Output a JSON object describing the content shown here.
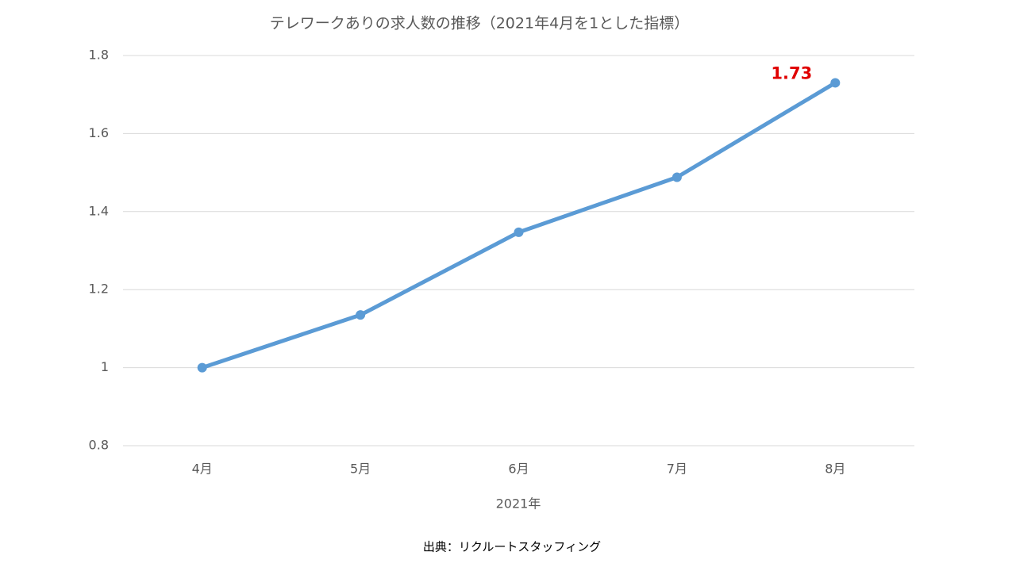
{
  "chart_data": {
    "type": "line",
    "title": "テレワークありの求人数の推移（2021年4月を1とした指標）",
    "categories": [
      "4月",
      "5月",
      "6月",
      "7月",
      "8月"
    ],
    "series": [
      {
        "name": "テレワークありの求人数",
        "color": "#5b9bd5",
        "values": [
          1,
          1.135,
          1.347,
          1.488,
          1.73
        ],
        "value_labels": [
          null,
          null,
          null,
          null,
          "1.73"
        ],
        "value_label_color": "#e00000"
      }
    ],
    "x_label": "2021年",
    "ylim": [
      0.8,
      1.8
    ],
    "yticks": [
      0.8,
      1,
      1.2,
      1.4,
      1.6,
      1.8
    ],
    "grid": true,
    "source": "出典：リクルートスタッフィング"
  }
}
